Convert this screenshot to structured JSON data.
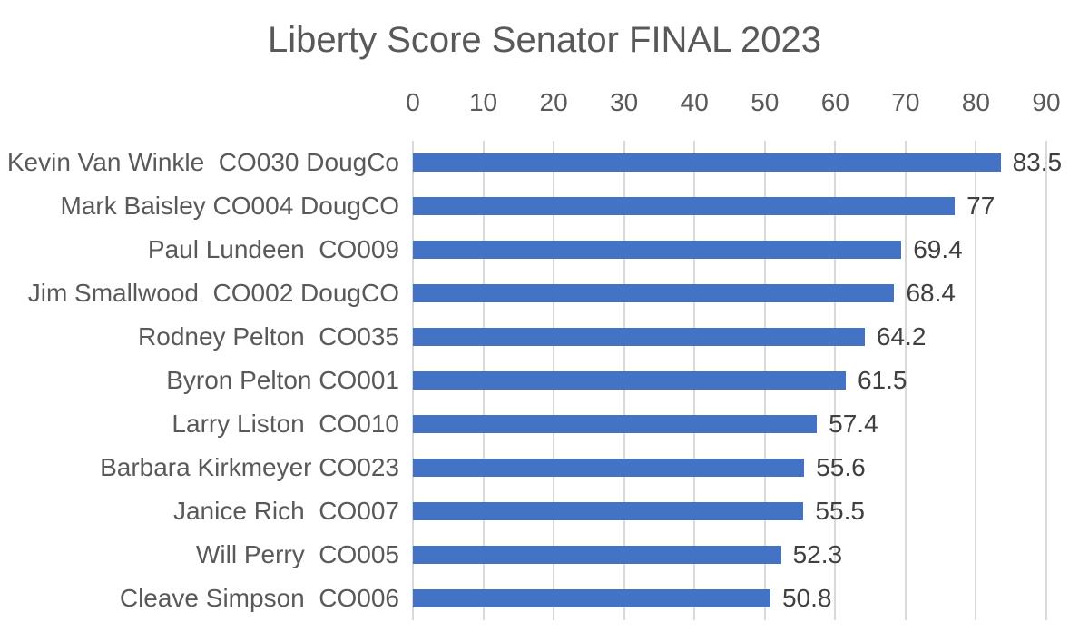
{
  "chart_data": {
    "type": "bar",
    "orientation": "horizontal",
    "title": "Liberty Score Senator FINAL 2023",
    "categories": [
      "Kevin Van Winkle  CO030 DougCo",
      "Mark Baisley CO004 DougCO",
      "Paul Lundeen  CO009",
      "Jim Smallwood  CO002 DougCO",
      "Rodney Pelton  CO035",
      "Byron Pelton CO001",
      "Larry Liston  CO010",
      "Barbara Kirkmeyer CO023",
      "Janice Rich  CO007",
      "Will Perry  CO005",
      "Cleave Simpson  CO006"
    ],
    "values": [
      83.5,
      77,
      69.4,
      68.4,
      64.2,
      61.5,
      57.4,
      55.6,
      55.5,
      52.3,
      50.8
    ],
    "value_labels": [
      "83.5",
      "77",
      "69.4",
      "68.4",
      "64.2",
      "61.5",
      "57.4",
      "55.6",
      "55.5",
      "52.3",
      "50.8"
    ],
    "x_ticks": [
      "0",
      "10",
      "20",
      "30",
      "40",
      "50",
      "60",
      "70",
      "80",
      "90"
    ],
    "xlim": [
      0,
      90
    ],
    "axis_position": "top",
    "grid": true,
    "legend": "none",
    "colors": {
      "bar": "#4472C4",
      "gridline": "#D9D9D9",
      "title": "#595959",
      "tick_label": "#595959",
      "category_label": "#595959",
      "value_label": "#404040"
    }
  }
}
